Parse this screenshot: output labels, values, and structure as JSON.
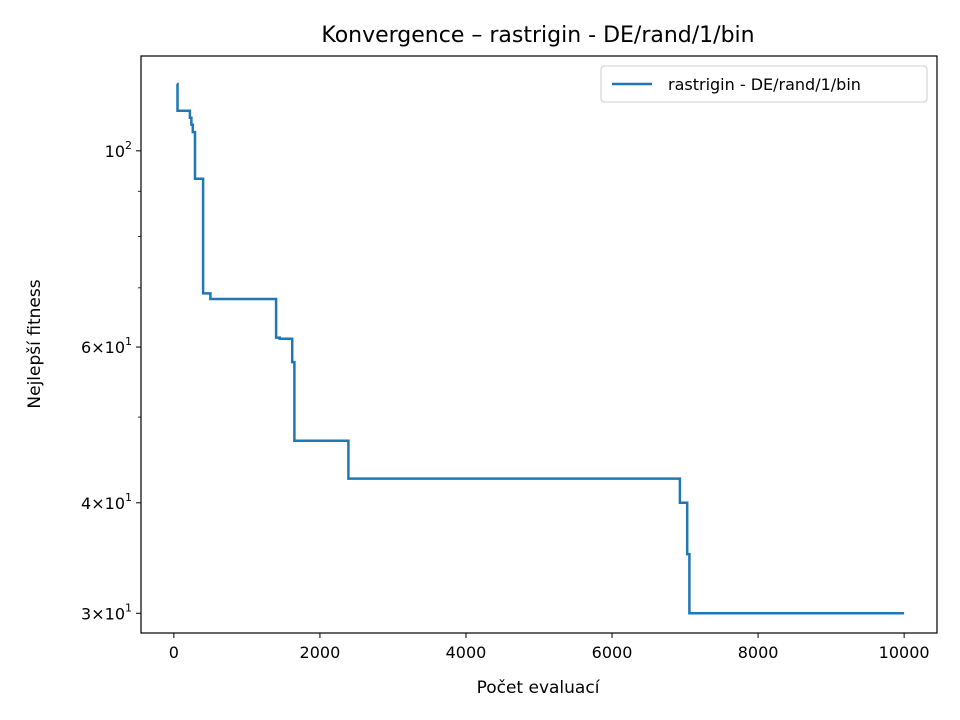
{
  "chart_data": {
    "type": "line",
    "title": "Konvergence – rastrigin - DE/rand/1/bin",
    "xlabel": "Počet evaluací",
    "ylabel": "Nejlepší fitness",
    "x_scale": "linear",
    "y_scale": "log",
    "xlim": [
      -450,
      10450
    ],
    "ylim": [
      28.5,
      128
    ],
    "grid": false,
    "legend_position": "upper right",
    "x_ticks": [
      {
        "value": 0,
        "label": "0"
      },
      {
        "value": 2000,
        "label": "2000"
      },
      {
        "value": 4000,
        "label": "4000"
      },
      {
        "value": 6000,
        "label": "6000"
      },
      {
        "value": 8000,
        "label": "8000"
      },
      {
        "value": 10000,
        "label": "10000"
      }
    ],
    "y_major_ticks": [
      {
        "value": 30,
        "mantissa": "3",
        "base": "10",
        "exp": "1"
      },
      {
        "value": 40,
        "mantissa": "4",
        "base": "10",
        "exp": "1"
      },
      {
        "value": 60,
        "mantissa": "6",
        "base": "10",
        "exp": "1"
      },
      {
        "value": 100,
        "mantissa": "",
        "base": "10",
        "exp": "2"
      }
    ],
    "y_minor_ticks": [
      50,
      70,
      80,
      90
    ],
    "series": [
      {
        "name": "rastrigin - DE/rand/1/bin",
        "color": "#1f77b4",
        "step": "post",
        "x": [
          40,
          50,
          200,
          220,
          240,
          260,
          290,
          400,
          500,
          1380,
          1400,
          1450,
          1580,
          1620,
          1650,
          2390,
          6930,
          7030,
          7060,
          7090,
          10000
        ],
        "y": [
          119,
          111,
          111,
          109,
          107,
          105,
          93,
          69,
          68,
          68,
          61.5,
          61.3,
          61.3,
          57.7,
          47,
          42.6,
          40,
          35,
          30,
          30,
          30
        ]
      }
    ]
  }
}
